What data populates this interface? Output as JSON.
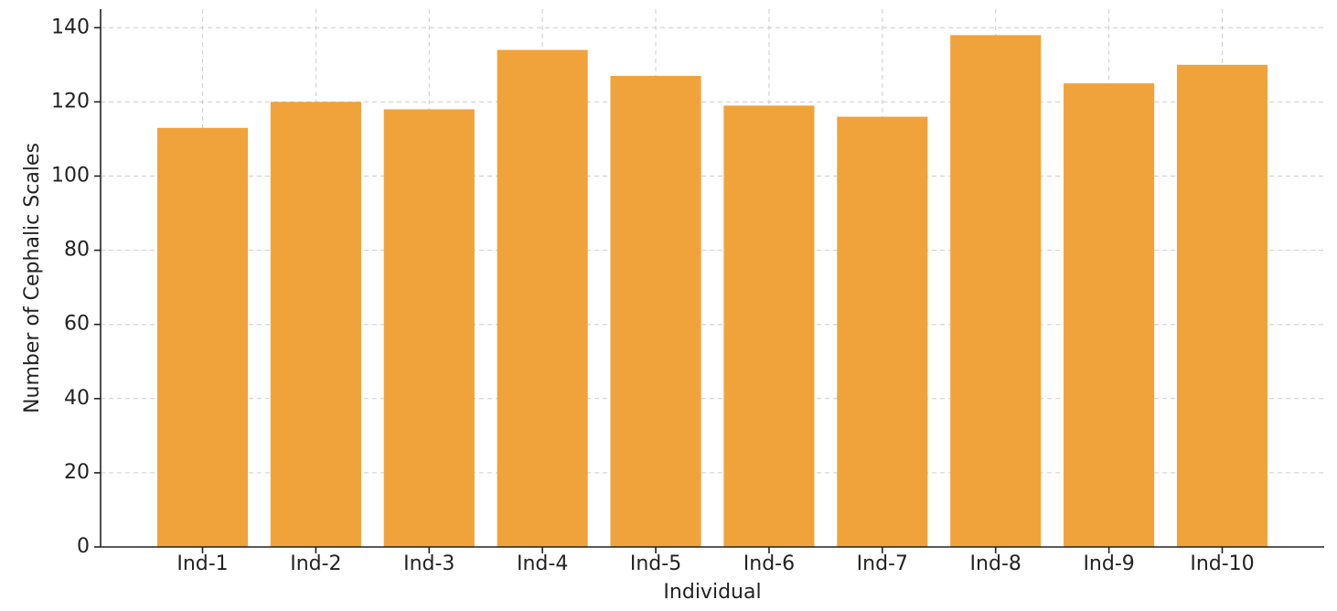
{
  "chart_data": {
    "type": "bar",
    "xlabel": "Individual",
    "ylabel": "Number of Cephalic Scales",
    "categories": [
      "Ind-1",
      "Ind-2",
      "Ind-3",
      "Ind-4",
      "Ind-5",
      "Ind-6",
      "Ind-7",
      "Ind-8",
      "Ind-9",
      "Ind-10"
    ],
    "values": [
      113,
      120,
      118,
      134,
      127,
      119,
      116,
      138,
      125,
      130
    ],
    "color": "#f0a33a",
    "ylim": [
      0,
      145
    ],
    "yticks": [
      0,
      20,
      40,
      60,
      80,
      100,
      120,
      140
    ],
    "grid": true
  }
}
